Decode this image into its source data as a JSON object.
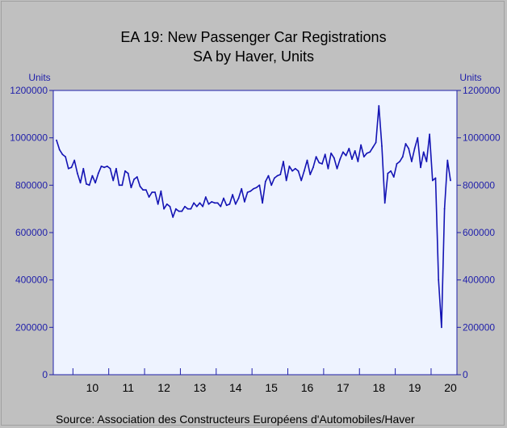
{
  "chart_data": {
    "type": "line",
    "title": "EA 19: New Passenger Car Registrations",
    "subtitle": "SA by Haver, Units",
    "ylabel_left": "Units",
    "ylabel_right": "Units",
    "source": "Source:   Association des Constructeurs Européens d'Automobiles/Haver",
    "ylim": [
      0,
      1200000
    ],
    "yticks": [
      "1200000",
      "1000000",
      "800000",
      "600000",
      "400000",
      "200000",
      "0"
    ],
    "ytick_values": [
      1200000,
      1000000,
      800000,
      600000,
      400000,
      200000,
      0
    ],
    "xlabels": [
      "10",
      "11",
      "12",
      "13",
      "14",
      "15",
      "16",
      "17",
      "18",
      "19",
      "20"
    ],
    "start": "2009-07",
    "frequency": "monthly",
    "grid": false,
    "colors": {
      "line": "#1414b4",
      "plot_bg": "#eef3ff",
      "axis": "#1f1faa",
      "background": "#c0c0c0"
    },
    "series": [
      {
        "name": "",
        "values": [
          990000,
          950000,
          930000,
          920000,
          870000,
          875000,
          905000,
          850000,
          810000,
          870000,
          805000,
          800000,
          840000,
          810000,
          850000,
          880000,
          875000,
          880000,
          870000,
          820000,
          870000,
          800000,
          800000,
          860000,
          850000,
          790000,
          825000,
          835000,
          795000,
          780000,
          780000,
          750000,
          770000,
          770000,
          720000,
          775000,
          700000,
          720000,
          710000,
          665000,
          700000,
          690000,
          690000,
          710000,
          700000,
          700000,
          725000,
          710000,
          725000,
          710000,
          750000,
          720000,
          730000,
          725000,
          725000,
          710000,
          745000,
          715000,
          720000,
          760000,
          720000,
          745000,
          785000,
          730000,
          770000,
          775000,
          785000,
          790000,
          800000,
          725000,
          815000,
          840000,
          800000,
          830000,
          840000,
          845000,
          900000,
          820000,
          880000,
          860000,
          870000,
          860000,
          820000,
          860000,
          905000,
          845000,
          875000,
          920000,
          895000,
          890000,
          930000,
          870000,
          935000,
          915000,
          870000,
          910000,
          940000,
          925000,
          955000,
          910000,
          945000,
          900000,
          970000,
          920000,
          935000,
          940000,
          960000,
          980000,
          1135000,
          965000,
          725000,
          850000,
          860000,
          835000,
          890000,
          900000,
          920000,
          975000,
          955000,
          900000,
          955000,
          1000000,
          875000,
          940000,
          900000,
          1015000,
          820000,
          830000,
          400000,
          200000,
          700000,
          905000,
          820000
        ]
      }
    ]
  }
}
